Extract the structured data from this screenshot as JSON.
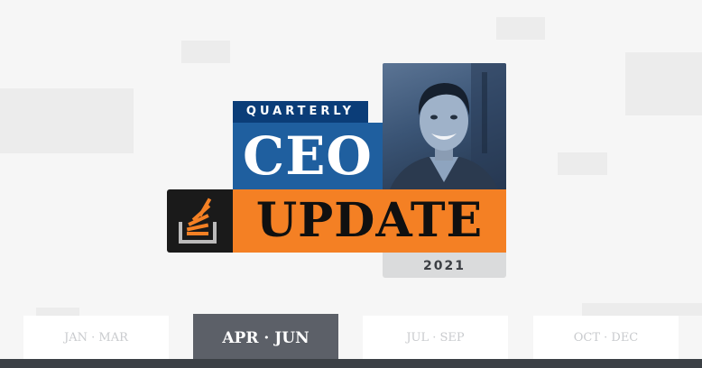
{
  "header": {
    "quarterly_label": "QUARTERLY",
    "ceo_label": "CEO",
    "update_label": "UPDATE",
    "year": "2021"
  },
  "tabs": [
    {
      "label": "JAN · MAR",
      "active": false
    },
    {
      "label": "APR · JUN",
      "active": true
    },
    {
      "label": "JUL · SEP",
      "active": false
    },
    {
      "label": "OCT · DEC",
      "active": false
    }
  ],
  "icons": {
    "logo": "stack-overflow-logo-icon",
    "portrait": "person-portrait-icon"
  },
  "colors": {
    "navy": "#0b3d78",
    "blue": "#1f5f9f",
    "orange": "#f48024",
    "dark": "#1a1a1a",
    "active_tab": "#5c6068"
  }
}
